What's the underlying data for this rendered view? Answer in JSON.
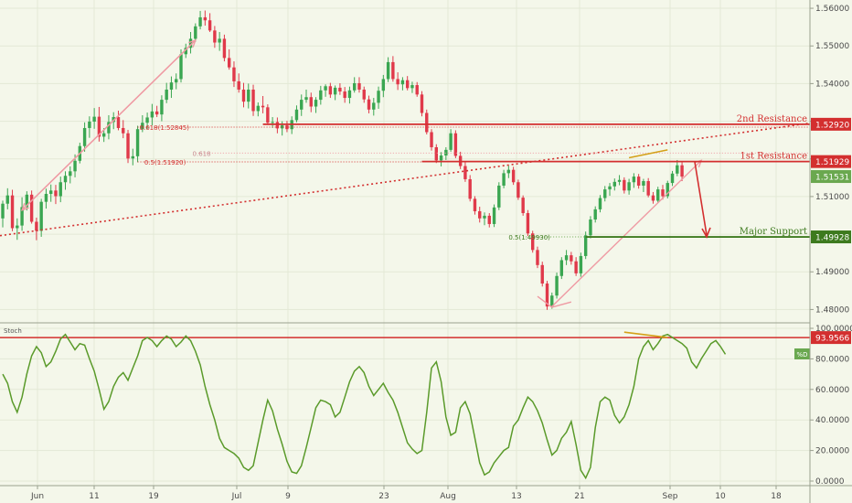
{
  "chart_data": {
    "type": "candlestick",
    "price_axis": {
      "ticks": [
        "1.56000",
        "1.55000",
        "1.54000",
        "1.53000",
        "1.52000",
        "1.51000",
        "1.50000",
        "1.49000",
        "1.48000"
      ],
      "ylim": [
        1.4767,
        1.5622
      ]
    },
    "stoch_axis": {
      "ticks": [
        "100.0000",
        "80.0000",
        "60.0000",
        "40.0000",
        "20.0000",
        "0.0000"
      ],
      "ylim": [
        -3,
        103
      ]
    },
    "x_ticks": [
      "Jun",
      "11",
      "19",
      "Jul",
      "9",
      "23",
      "Aug",
      "13",
      "21",
      "Sep",
      "10",
      "18"
    ],
    "last_price": "1.51531",
    "levels": [
      {
        "label": "2nd Resistance",
        "badge": "1.52920",
        "value": 1.5292,
        "color": "#d32f2f"
      },
      {
        "label": "1st Resistance",
        "badge": "1.51929",
        "value": 1.51929,
        "color": "#d32f2f"
      },
      {
        "label": "Major Support",
        "badge": "1.49928",
        "value": 1.49928,
        "color": "#3d7a1e"
      }
    ],
    "fib_labels": [
      "0.618(1.52845)",
      "0.5(1.51920)",
      "0.618",
      "0.5(1.49930)"
    ],
    "stoch_indicator": {
      "title": "Stoch",
      "line_label": "%D",
      "level_badge": "93.9566",
      "level_value": 93.9566,
      "values": [
        70,
        64,
        52,
        45,
        55,
        70,
        82,
        88,
        84,
        75,
        78,
        85,
        93,
        96,
        91,
        86,
        90,
        89,
        80,
        72,
        60,
        47,
        52,
        62,
        68,
        71,
        66,
        74,
        82,
        92,
        94,
        92,
        88,
        92,
        95,
        93,
        88,
        91,
        95,
        92,
        85,
        76,
        62,
        50,
        40,
        28,
        22,
        20,
        18,
        15,
        9,
        7,
        10,
        25,
        40,
        53,
        46,
        34,
        24,
        13,
        6,
        5,
        10,
        22,
        35,
        48,
        53,
        52,
        50,
        42,
        45,
        55,
        65,
        72,
        75,
        71,
        62,
        56,
        60,
        64,
        58,
        53,
        45,
        35,
        25,
        21,
        18,
        20,
        45,
        74,
        78,
        65,
        42,
        30,
        32,
        48,
        52,
        44,
        28,
        12,
        4,
        6,
        12,
        16,
        20,
        22,
        36,
        40,
        48,
        55,
        52,
        46,
        38,
        27,
        17,
        20,
        28,
        32,
        39,
        24,
        7,
        2,
        9,
        35,
        52,
        55,
        53,
        43,
        38,
        42,
        50,
        62,
        80,
        88,
        92,
        86,
        90,
        95,
        96,
        94,
        92,
        90,
        87,
        78,
        74,
        80,
        85,
        90,
        92,
        88,
        83
      ]
    },
    "candles": [
      [
        1.5042,
        1.5089,
        1.5018,
        1.5081
      ],
      [
        1.5081,
        1.5122,
        1.5066,
        1.5103
      ],
      [
        1.5103,
        1.5118,
        1.5008,
        1.5016
      ],
      [
        1.5016,
        1.5042,
        1.4985,
        1.5023
      ],
      [
        1.5023,
        1.5098,
        1.5009,
        1.5072
      ],
      [
        1.5072,
        1.5114,
        1.5063,
        1.5105
      ],
      [
        1.5105,
        1.5116,
        1.5028,
        1.5033
      ],
      [
        1.5033,
        1.5044,
        1.4984,
        1.5009
      ],
      [
        1.5009,
        1.5094,
        1.4993,
        1.5086
      ],
      [
        1.5086,
        1.5121,
        1.5068,
        1.5107
      ],
      [
        1.5107,
        1.5132,
        1.5086,
        1.5116
      ],
      [
        1.5116,
        1.5131,
        1.508,
        1.5101
      ],
      [
        1.5101,
        1.5153,
        1.5085,
        1.5138
      ],
      [
        1.5138,
        1.5167,
        1.5118,
        1.5155
      ],
      [
        1.5155,
        1.518,
        1.5135,
        1.5167
      ],
      [
        1.5167,
        1.5212,
        1.5151,
        1.5195
      ],
      [
        1.5195,
        1.5243,
        1.5188,
        1.5234
      ],
      [
        1.5234,
        1.5297,
        1.5219,
        1.5282
      ],
      [
        1.5282,
        1.5313,
        1.5256,
        1.5299
      ],
      [
        1.5299,
        1.5335,
        1.528,
        1.5312
      ],
      [
        1.5312,
        1.5338,
        1.5246,
        1.5259
      ],
      [
        1.5259,
        1.5282,
        1.5245,
        1.5268
      ],
      [
        1.5268,
        1.5316,
        1.5252,
        1.5298
      ],
      [
        1.5298,
        1.5324,
        1.5279,
        1.5311
      ],
      [
        1.5311,
        1.5328,
        1.5276,
        1.5282
      ],
      [
        1.5282,
        1.5303,
        1.5255,
        1.5268
      ],
      [
        1.5268,
        1.5277,
        1.5189,
        1.5201
      ],
      [
        1.5201,
        1.5227,
        1.5183,
        1.5207
      ],
      [
        1.5207,
        1.5288,
        1.5191,
        1.5279
      ],
      [
        1.5279,
        1.5316,
        1.5271,
        1.5296
      ],
      [
        1.5296,
        1.5323,
        1.5279,
        1.531
      ],
      [
        1.531,
        1.5346,
        1.5289,
        1.5326
      ],
      [
        1.5326,
        1.5341,
        1.5311,
        1.5318
      ],
      [
        1.5318,
        1.5369,
        1.53,
        1.5357
      ],
      [
        1.5357,
        1.5402,
        1.5348,
        1.5384
      ],
      [
        1.5384,
        1.5419,
        1.5362,
        1.5403
      ],
      [
        1.5403,
        1.5427,
        1.5385,
        1.5412
      ],
      [
        1.5412,
        1.5491,
        1.5403,
        1.5478
      ],
      [
        1.5478,
        1.5506,
        1.5468,
        1.5495
      ],
      [
        1.5495,
        1.5537,
        1.548,
        1.5519
      ],
      [
        1.5519,
        1.556,
        1.5511,
        1.5552
      ],
      [
        1.5552,
        1.5593,
        1.5544,
        1.5576
      ],
      [
        1.5576,
        1.5594,
        1.5554,
        1.5568
      ],
      [
        1.5568,
        1.5587,
        1.5537,
        1.5541
      ],
      [
        1.5541,
        1.5553,
        1.5495,
        1.5509
      ],
      [
        1.5509,
        1.5537,
        1.5487,
        1.5519
      ],
      [
        1.5519,
        1.553,
        1.5459,
        1.5468
      ],
      [
        1.5468,
        1.5491,
        1.5437,
        1.5443
      ],
      [
        1.5443,
        1.5459,
        1.5391,
        1.5406
      ],
      [
        1.5406,
        1.5427,
        1.5376,
        1.5384
      ],
      [
        1.5384,
        1.5402,
        1.5337,
        1.5352
      ],
      [
        1.5352,
        1.54,
        1.5334,
        1.5384
      ],
      [
        1.5384,
        1.5397,
        1.5314,
        1.5327
      ],
      [
        1.5327,
        1.535,
        1.5313,
        1.5341
      ],
      [
        1.5341,
        1.5367,
        1.5321,
        1.5337
      ],
      [
        1.5337,
        1.5345,
        1.529,
        1.5296
      ],
      [
        1.5296,
        1.5311,
        1.5282,
        1.5298
      ],
      [
        1.5298,
        1.531,
        1.5268,
        1.5281
      ],
      [
        1.5281,
        1.53,
        1.5262,
        1.5289
      ],
      [
        1.5289,
        1.5301,
        1.5271,
        1.5279
      ],
      [
        1.5279,
        1.5313,
        1.5266,
        1.5303
      ],
      [
        1.5303,
        1.5342,
        1.5297,
        1.5331
      ],
      [
        1.5331,
        1.5371,
        1.5314,
        1.5357
      ],
      [
        1.5357,
        1.5384,
        1.5349,
        1.5364
      ],
      [
        1.5364,
        1.5376,
        1.5324,
        1.5339
      ],
      [
        1.5339,
        1.5364,
        1.5322,
        1.5357
      ],
      [
        1.5357,
        1.5394,
        1.5344,
        1.5382
      ],
      [
        1.5382,
        1.5398,
        1.5365,
        1.5393
      ],
      [
        1.5393,
        1.5402,
        1.5362,
        1.5371
      ],
      [
        1.5371,
        1.5395,
        1.5356,
        1.5389
      ],
      [
        1.5389,
        1.5401,
        1.537,
        1.5379
      ],
      [
        1.5379,
        1.5391,
        1.5349,
        1.5362
      ],
      [
        1.5362,
        1.5392,
        1.5347,
        1.5382
      ],
      [
        1.5382,
        1.5417,
        1.5376,
        1.5401
      ],
      [
        1.5401,
        1.5417,
        1.5376,
        1.5384
      ],
      [
        1.5384,
        1.5392,
        1.5349,
        1.5358
      ],
      [
        1.5358,
        1.5368,
        1.5321,
        1.5331
      ],
      [
        1.5331,
        1.5362,
        1.5315,
        1.5349
      ],
      [
        1.5349,
        1.5392,
        1.5333,
        1.5381
      ],
      [
        1.5381,
        1.5423,
        1.5364,
        1.5412
      ],
      [
        1.5412,
        1.547,
        1.5404,
        1.5457
      ],
      [
        1.5457,
        1.5473,
        1.5405,
        1.5412
      ],
      [
        1.5412,
        1.543,
        1.5383,
        1.5398
      ],
      [
        1.5398,
        1.5417,
        1.5382,
        1.5409
      ],
      [
        1.5409,
        1.542,
        1.5382,
        1.5388
      ],
      [
        1.5388,
        1.5405,
        1.5375,
        1.5396
      ],
      [
        1.5396,
        1.5404,
        1.5365,
        1.5371
      ],
      [
        1.5371,
        1.538,
        1.5313,
        1.5322
      ],
      [
        1.5322,
        1.5331,
        1.5265,
        1.5271
      ],
      [
        1.5271,
        1.5279,
        1.5222,
        1.5231
      ],
      [
        1.5231,
        1.5239,
        1.5189,
        1.5196
      ],
      [
        1.5196,
        1.5218,
        1.518,
        1.5209
      ],
      [
        1.5209,
        1.5231,
        1.5197,
        1.5224
      ],
      [
        1.5224,
        1.5279,
        1.5219,
        1.5268
      ],
      [
        1.5268,
        1.5276,
        1.5202,
        1.5208
      ],
      [
        1.5208,
        1.5219,
        1.5173,
        1.5181
      ],
      [
        1.5181,
        1.5192,
        1.5139,
        1.5146
      ],
      [
        1.5146,
        1.5157,
        1.5087,
        1.5094
      ],
      [
        1.5094,
        1.5101,
        1.5052,
        1.5061
      ],
      [
        1.5061,
        1.5073,
        1.5031,
        1.5042
      ],
      [
        1.5042,
        1.5058,
        1.5024,
        1.5049
      ],
      [
        1.5049,
        1.5056,
        1.5018,
        1.5027
      ],
      [
        1.5027,
        1.5079,
        1.5019,
        1.5071
      ],
      [
        1.5071,
        1.5138,
        1.5064,
        1.5129
      ],
      [
        1.5129,
        1.5171,
        1.5122,
        1.5162
      ],
      [
        1.5162,
        1.5182,
        1.5149,
        1.5171
      ],
      [
        1.5171,
        1.5179,
        1.5131,
        1.5138
      ],
      [
        1.5138,
        1.5145,
        1.5091,
        1.5097
      ],
      [
        1.5097,
        1.5103,
        1.5049,
        1.5056
      ],
      [
        1.5056,
        1.5064,
        1.4995,
        1.5002
      ],
      [
        1.5002,
        1.5009,
        1.4951,
        1.4958
      ],
      [
        1.4958,
        1.4967,
        1.491,
        1.4918
      ],
      [
        1.4918,
        1.4927,
        1.4861,
        1.4869
      ],
      [
        1.4869,
        1.4876,
        1.4799,
        1.4808
      ],
      [
        1.4808,
        1.4845,
        1.4802,
        1.4837
      ],
      [
        1.4837,
        1.4898,
        1.4829,
        1.4889
      ],
      [
        1.4889,
        1.4939,
        1.4881,
        1.4931
      ],
      [
        1.4931,
        1.4958,
        1.4918,
        1.4944
      ],
      [
        1.4944,
        1.4953,
        1.4919,
        1.4928
      ],
      [
        1.4928,
        1.4939,
        1.4889,
        1.4896
      ],
      [
        1.4896,
        1.4951,
        1.4887,
        1.4942
      ],
      [
        1.4942,
        1.5007,
        1.4934,
        1.4997
      ],
      [
        1.4997,
        1.5048,
        1.4989,
        1.5039
      ],
      [
        1.5039,
        1.5074,
        1.5031,
        1.5066
      ],
      [
        1.5066,
        1.5104,
        1.5058,
        1.5096
      ],
      [
        1.5096,
        1.5128,
        1.5087,
        1.5119
      ],
      [
        1.5119,
        1.5136,
        1.5102,
        1.5127
      ],
      [
        1.5127,
        1.5148,
        1.5116,
        1.5139
      ],
      [
        1.5139,
        1.5157,
        1.513,
        1.5144
      ],
      [
        1.5144,
        1.5151,
        1.5108,
        1.5116
      ],
      [
        1.5116,
        1.5147,
        1.5105,
        1.5138
      ],
      [
        1.5138,
        1.5162,
        1.5123,
        1.5153
      ],
      [
        1.5153,
        1.516,
        1.5121,
        1.5129
      ],
      [
        1.5129,
        1.5147,
        1.5112,
        1.5141
      ],
      [
        1.5141,
        1.5149,
        1.5098,
        1.5103
      ],
      [
        1.5103,
        1.5112,
        1.5081,
        1.5089
      ],
      [
        1.5089,
        1.5126,
        1.5083,
        1.5119
      ],
      [
        1.5119,
        1.5131,
        1.5092,
        1.5101
      ],
      [
        1.5101,
        1.5142,
        1.5095,
        1.5136
      ],
      [
        1.5136,
        1.5168,
        1.5128,
        1.5161
      ],
      [
        1.5161,
        1.5197,
        1.5154,
        1.5183
      ],
      [
        1.5183,
        1.5192,
        1.5141,
        1.5153
      ]
    ]
  }
}
